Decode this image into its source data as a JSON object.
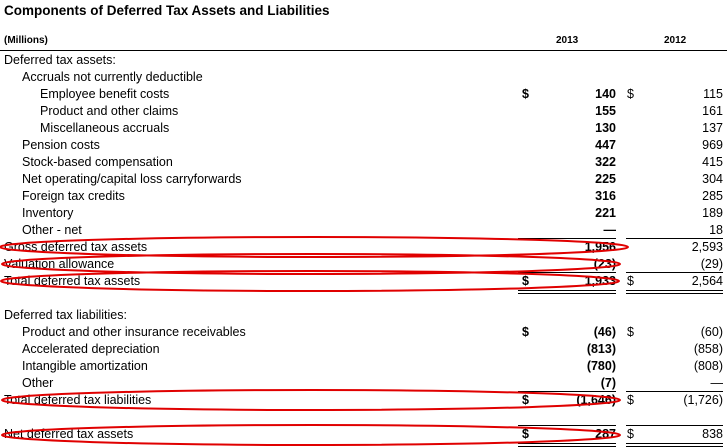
{
  "title": "Components of Deferred Tax Assets and Liabilities",
  "header": {
    "units": "(Millions)",
    "col2013": "2013",
    "col2012": "2012"
  },
  "rows": [
    {
      "label": "Deferred tax assets:",
      "indent": 0
    },
    {
      "label": "Accruals not currently deductible",
      "indent": 1
    },
    {
      "label": "Employee benefit costs",
      "indent": 2,
      "d13": "$",
      "v13": "140",
      "d12": "$",
      "v12": "115"
    },
    {
      "label": "Product and other claims",
      "indent": 2,
      "v13": "155",
      "v12": "161"
    },
    {
      "label": "Miscellaneous accruals",
      "indent": 2,
      "v13": "130",
      "v12": "137"
    },
    {
      "label": "Pension costs",
      "indent": 1,
      "v13": "447",
      "v12": "969"
    },
    {
      "label": "Stock-based compensation",
      "indent": 1,
      "v13": "322",
      "v12": "415"
    },
    {
      "label": "Net operating/capital loss carryforwards",
      "indent": 1,
      "v13": "225",
      "v12": "304"
    },
    {
      "label": "Foreign tax credits",
      "indent": 1,
      "v13": "316",
      "v12": "285"
    },
    {
      "label": "Inventory",
      "indent": 1,
      "v13": "221",
      "v12": "189"
    },
    {
      "label": "Other - net",
      "indent": 1,
      "v13": "—",
      "v12": "18"
    },
    {
      "label": "Gross deferred tax assets",
      "indent": 0,
      "v13": "1,956",
      "v12": "2,593"
    },
    {
      "label": "Valuation allowance",
      "indent": 0,
      "v13": "(23)",
      "v12": "(29)"
    },
    {
      "label": "Total deferred tax assets",
      "indent": 0,
      "d13": "$",
      "v13": "1,933",
      "d12": "$",
      "v12": "2,564"
    },
    {
      "label": "",
      "indent": 0
    },
    {
      "label": "Deferred tax liabilities:",
      "indent": 0
    },
    {
      "label": "Product and other insurance receivables",
      "indent": 1,
      "d13": "$",
      "v13": "(46)",
      "d12": "$",
      "v12": "(60)"
    },
    {
      "label": "Accelerated depreciation",
      "indent": 1,
      "v13": "(813)",
      "v12": "(858)"
    },
    {
      "label": "Intangible amortization",
      "indent": 1,
      "v13": "(780)",
      "v12": "(808)"
    },
    {
      "label": "Other",
      "indent": 1,
      "v13": "(7)",
      "v12": "—"
    },
    {
      "label": "Total deferred tax liabilities",
      "indent": 0,
      "d13": "$",
      "v13": "(1,646)",
      "d12": "$",
      "v12": "(1,726)"
    },
    {
      "label": "",
      "indent": 0
    },
    {
      "label": "Net deferred tax assets",
      "indent": 0,
      "d13": "$",
      "v13": "287",
      "d12": "$",
      "v12": "838"
    }
  ],
  "highlight_color": "#e00000"
}
